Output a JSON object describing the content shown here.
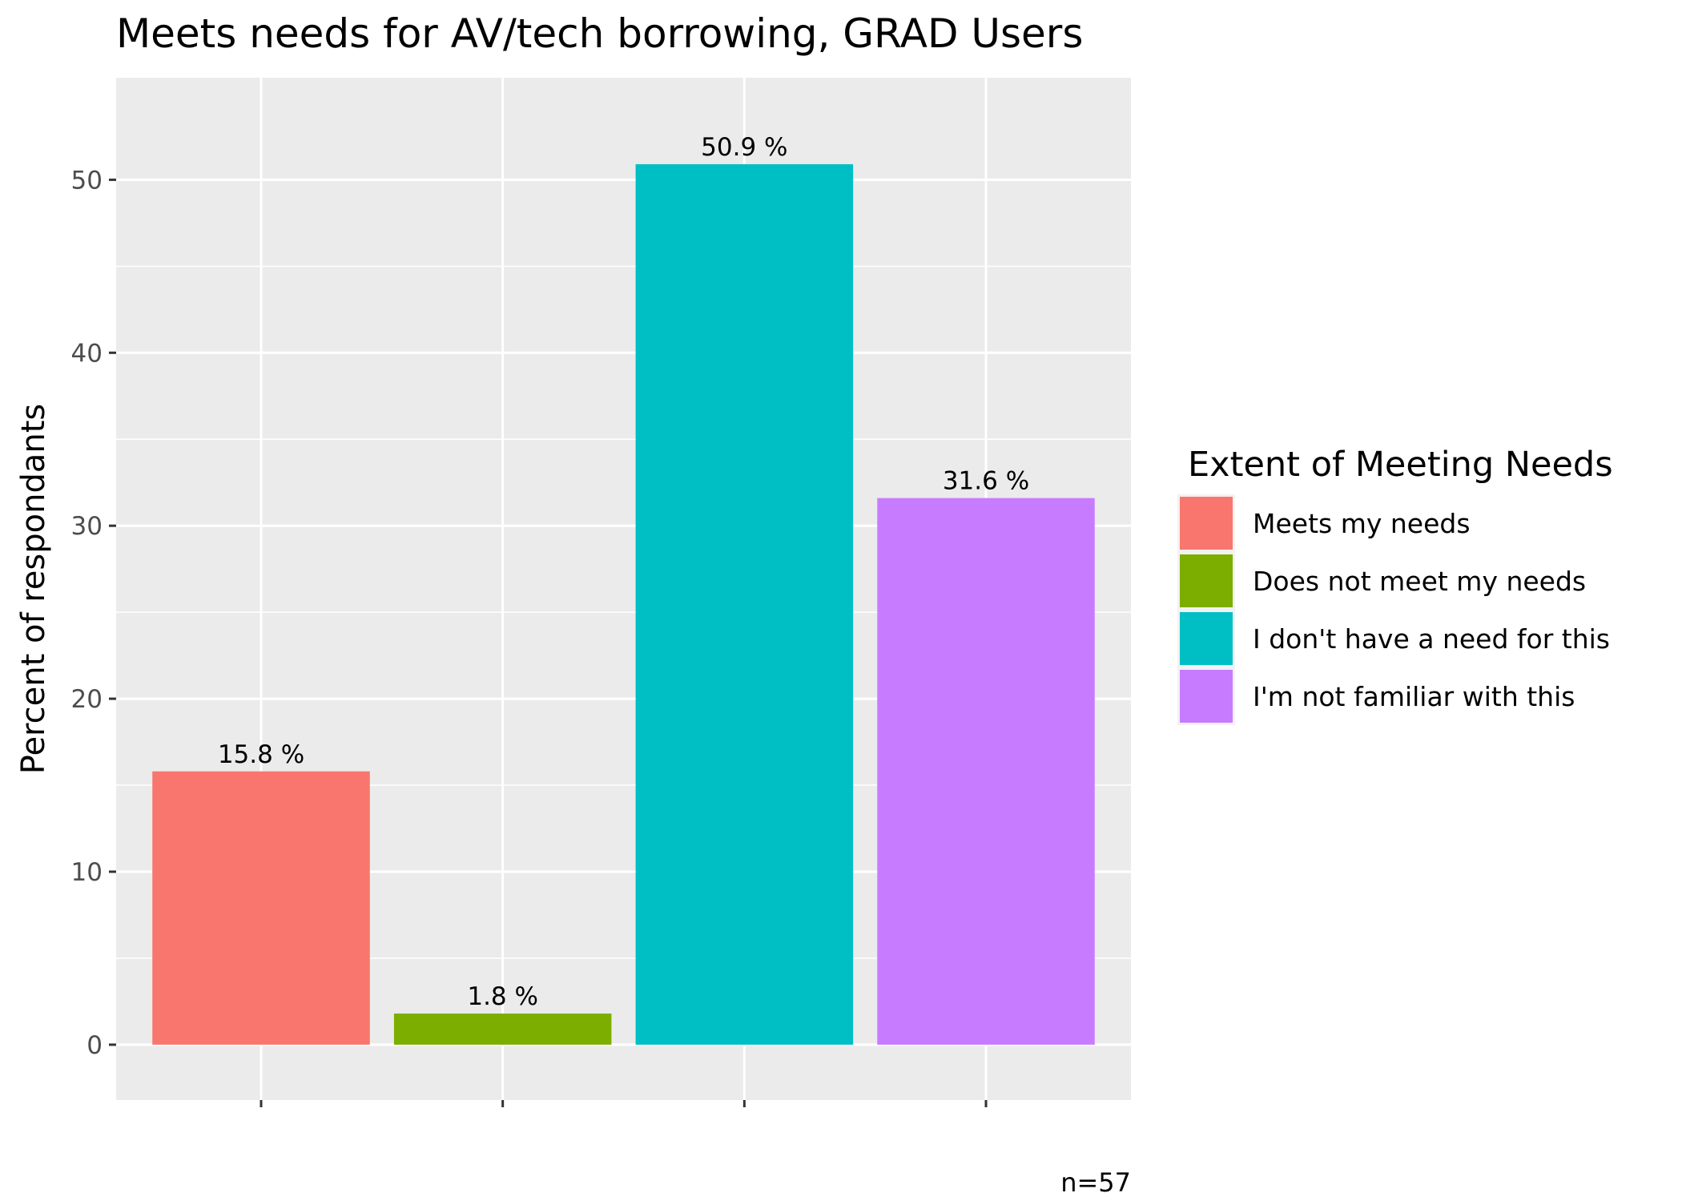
{
  "chart_data": {
    "type": "bar",
    "title": "Meets needs for AV/tech borrowing, GRAD Users",
    "xlabel": "",
    "ylabel": "Percent of respondants",
    "categories": [
      "Meets my needs",
      "Does not meet my needs",
      "I don't have a need for this",
      "I'm not familiar with this"
    ],
    "values": [
      15.8,
      1.8,
      50.9,
      31.6
    ],
    "value_labels": [
      "15.8 %",
      "1.8 %",
      "50.9 %",
      "31.6 %"
    ],
    "colors": [
      "#F8766D",
      "#7CAE00",
      "#00BFC4",
      "#C77CFF"
    ],
    "ylim": [
      -3.2,
      55.9
    ],
    "yticks": [
      0,
      10,
      20,
      30,
      40,
      50
    ],
    "grid": true,
    "panel_background": "#EBEBEB",
    "legend": {
      "title": "Extent of Meeting Needs",
      "position": "right",
      "items": [
        "Meets my needs",
        "Does not meet my needs",
        "I don't have a need for this",
        "I'm not familiar with this"
      ]
    },
    "caption": "n=57"
  }
}
